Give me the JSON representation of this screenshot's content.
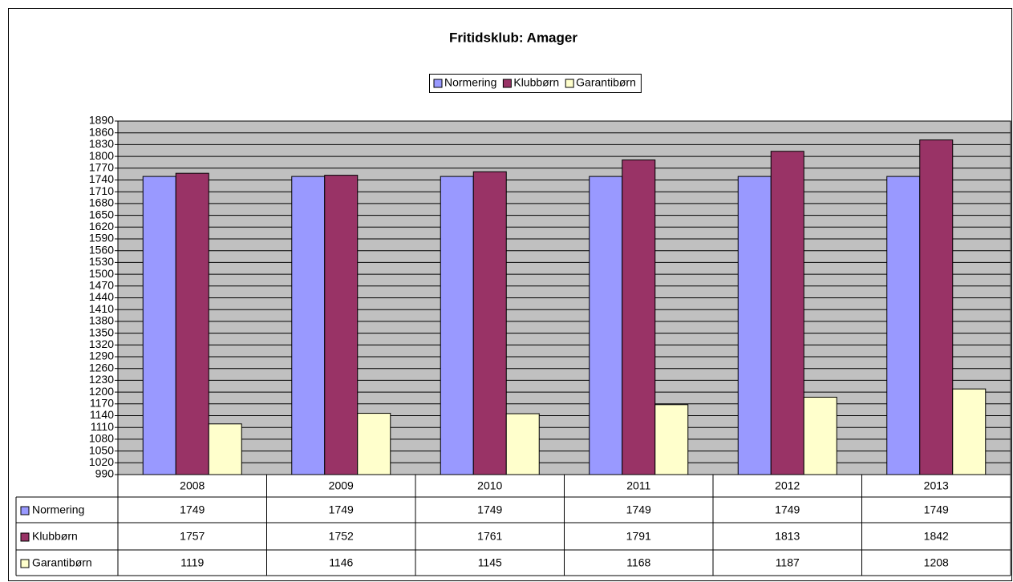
{
  "chart_data": {
    "type": "bar",
    "title": "Fritidsklub: Amager",
    "categories": [
      "2008",
      "2009",
      "2010",
      "2011",
      "2012",
      "2013"
    ],
    "series": [
      {
        "name": "Normering",
        "color": "#9999ff",
        "values": [
          1749,
          1749,
          1749,
          1749,
          1749,
          1749
        ]
      },
      {
        "name": "Klubbørn",
        "color": "#993366",
        "values": [
          1757,
          1752,
          1761,
          1791,
          1813,
          1842
        ]
      },
      {
        "name": "Garantibørn",
        "color": "#ffffcc",
        "values": [
          1119,
          1146,
          1145,
          1168,
          1187,
          1208
        ]
      }
    ],
    "ylim": [
      990,
      1890
    ],
    "yticks": [
      990,
      1020,
      1050,
      1080,
      1110,
      1140,
      1170,
      1200,
      1230,
      1260,
      1290,
      1320,
      1350,
      1380,
      1410,
      1440,
      1470,
      1500,
      1530,
      1560,
      1590,
      1620,
      1650,
      1680,
      1710,
      1740,
      1770,
      1800,
      1830,
      1860,
      1890
    ],
    "grid": true,
    "legend": "top",
    "data_table": true,
    "plot_background": "#c0c0c0"
  }
}
